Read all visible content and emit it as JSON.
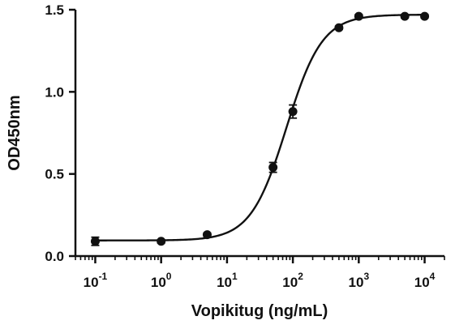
{
  "chart_data": {
    "type": "scatter",
    "title": "",
    "xlabel": "Vopikitug (ng/mL)",
    "ylabel": "OD450nm",
    "x_scale": "log",
    "xlim": [
      0.05,
      20000
    ],
    "ylim": [
      0,
      1.5
    ],
    "x_ticks": [
      {
        "value": 0.1,
        "base": "10",
        "exp": "-1"
      },
      {
        "value": 1,
        "base": "10",
        "exp": "0"
      },
      {
        "value": 10,
        "base": "10",
        "exp": "1"
      },
      {
        "value": 100,
        "base": "10",
        "exp": "2"
      },
      {
        "value": 1000,
        "base": "10",
        "exp": "3"
      },
      {
        "value": 10000,
        "base": "10",
        "exp": "4"
      }
    ],
    "y_ticks": [
      {
        "value": 0.0,
        "label": "0.0"
      },
      {
        "value": 0.5,
        "label": "0.5"
      },
      {
        "value": 1.0,
        "label": "1.0"
      },
      {
        "value": 1.5,
        "label": "1.5"
      }
    ],
    "points": [
      {
        "x": 0.1,
        "y": 0.09,
        "err": 0.025
      },
      {
        "x": 1,
        "y": 0.09,
        "err": 0.01
      },
      {
        "x": 5,
        "y": 0.13,
        "err": 0.01
      },
      {
        "x": 50,
        "y": 0.54,
        "err": 0.03
      },
      {
        "x": 100,
        "y": 0.88,
        "err": 0.04
      },
      {
        "x": 500,
        "y": 1.39,
        "err": 0.01
      },
      {
        "x": 1000,
        "y": 1.46,
        "err": 0.01
      },
      {
        "x": 5000,
        "y": 1.46,
        "err": 0.01
      },
      {
        "x": 10000,
        "y": 1.46,
        "err": 0.01
      }
    ],
    "fit_curve": {
      "model": "4PL",
      "bottom": 0.095,
      "top": 1.47,
      "ec50": 80,
      "hill": 1.6
    },
    "grid": false,
    "legend": "none",
    "colors": {
      "marker": "#111111",
      "line": "#111111",
      "axis": "#111111"
    }
  }
}
